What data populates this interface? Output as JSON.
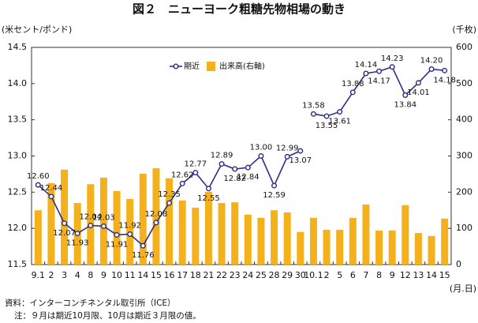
{
  "chart_data": {
    "type": "combo",
    "title": "図２　ニューヨーク粗糖先物相場の動き",
    "y_label": "(米セント/ポンド)",
    "y2_label": "(千枚)",
    "x_label": "(月.日)",
    "categories": [
      "9.1",
      "2",
      "3",
      "4",
      "8",
      "9",
      "10",
      "11",
      "14",
      "15",
      "16",
      "17",
      "18",
      "21",
      "22",
      "23",
      "24",
      "25",
      "28",
      "29",
      "30",
      "10.1",
      "2",
      "5",
      "6",
      "7",
      "8",
      "9",
      "12",
      "13",
      "14",
      "15"
    ],
    "series": [
      {
        "name": "出来高(右軸)",
        "type": "bar",
        "axis": "y2",
        "color": "#f5b11c",
        "values": [
          150,
          225,
          262,
          170,
          222,
          240,
          203,
          181,
          251,
          266,
          238,
          177,
          157,
          201,
          170,
          172,
          138,
          129,
          150,
          144,
          90,
          129,
          96,
          96,
          129,
          166,
          94,
          94,
          164,
          87,
          79,
          127
        ]
      },
      {
        "name": "期近",
        "type": "line",
        "color": "#2b2f86",
        "values": [
          12.6,
          12.44,
          12.07,
          11.93,
          12.04,
          12.03,
          11.91,
          11.92,
          11.76,
          12.08,
          12.35,
          12.62,
          12.77,
          12.55,
          12.89,
          12.82,
          12.84,
          13.0,
          12.59,
          12.99,
          13.07,
          13.58,
          13.55,
          13.61,
          13.88,
          14.14,
          14.17,
          14.23,
          13.84,
          14.01,
          14.2,
          14.18
        ],
        "value_labels": [
          "12.60",
          "12.44",
          "12.07",
          "11.93",
          "12.04",
          "12.03",
          "11.91",
          "11.92",
          "11.76",
          "12.08",
          "12.35",
          "12.62",
          "12.77",
          "12.55",
          "12.89",
          "12.82",
          "12.84",
          "13.00",
          "12.59",
          "12.99",
          "13.07",
          "13.58",
          "13.55",
          "13.61",
          "13.88",
          "14.14",
          "14.17",
          "14.23",
          "13.84",
          "14.01",
          "14.20",
          "14.18"
        ]
      }
    ],
    "ylim": [
      11.5,
      14.5
    ],
    "yticks": [
      11.5,
      {
        "value": 12,
        "label": "12.0"
      },
      12.5,
      {
        "value": 13,
        "label": "13.0"
      },
      13.5,
      {
        "value": 14,
        "label": "14.0"
      },
      14.5
    ],
    "y2lim": [
      0,
      600
    ],
    "y2ticks": [
      0,
      100,
      200,
      300,
      400,
      500,
      600
    ],
    "grid": false,
    "source": "資料：インターコンチネンタル取引所（ICE）",
    "note": "注：９月は期近10月限、10月は期近３月限の値。"
  }
}
